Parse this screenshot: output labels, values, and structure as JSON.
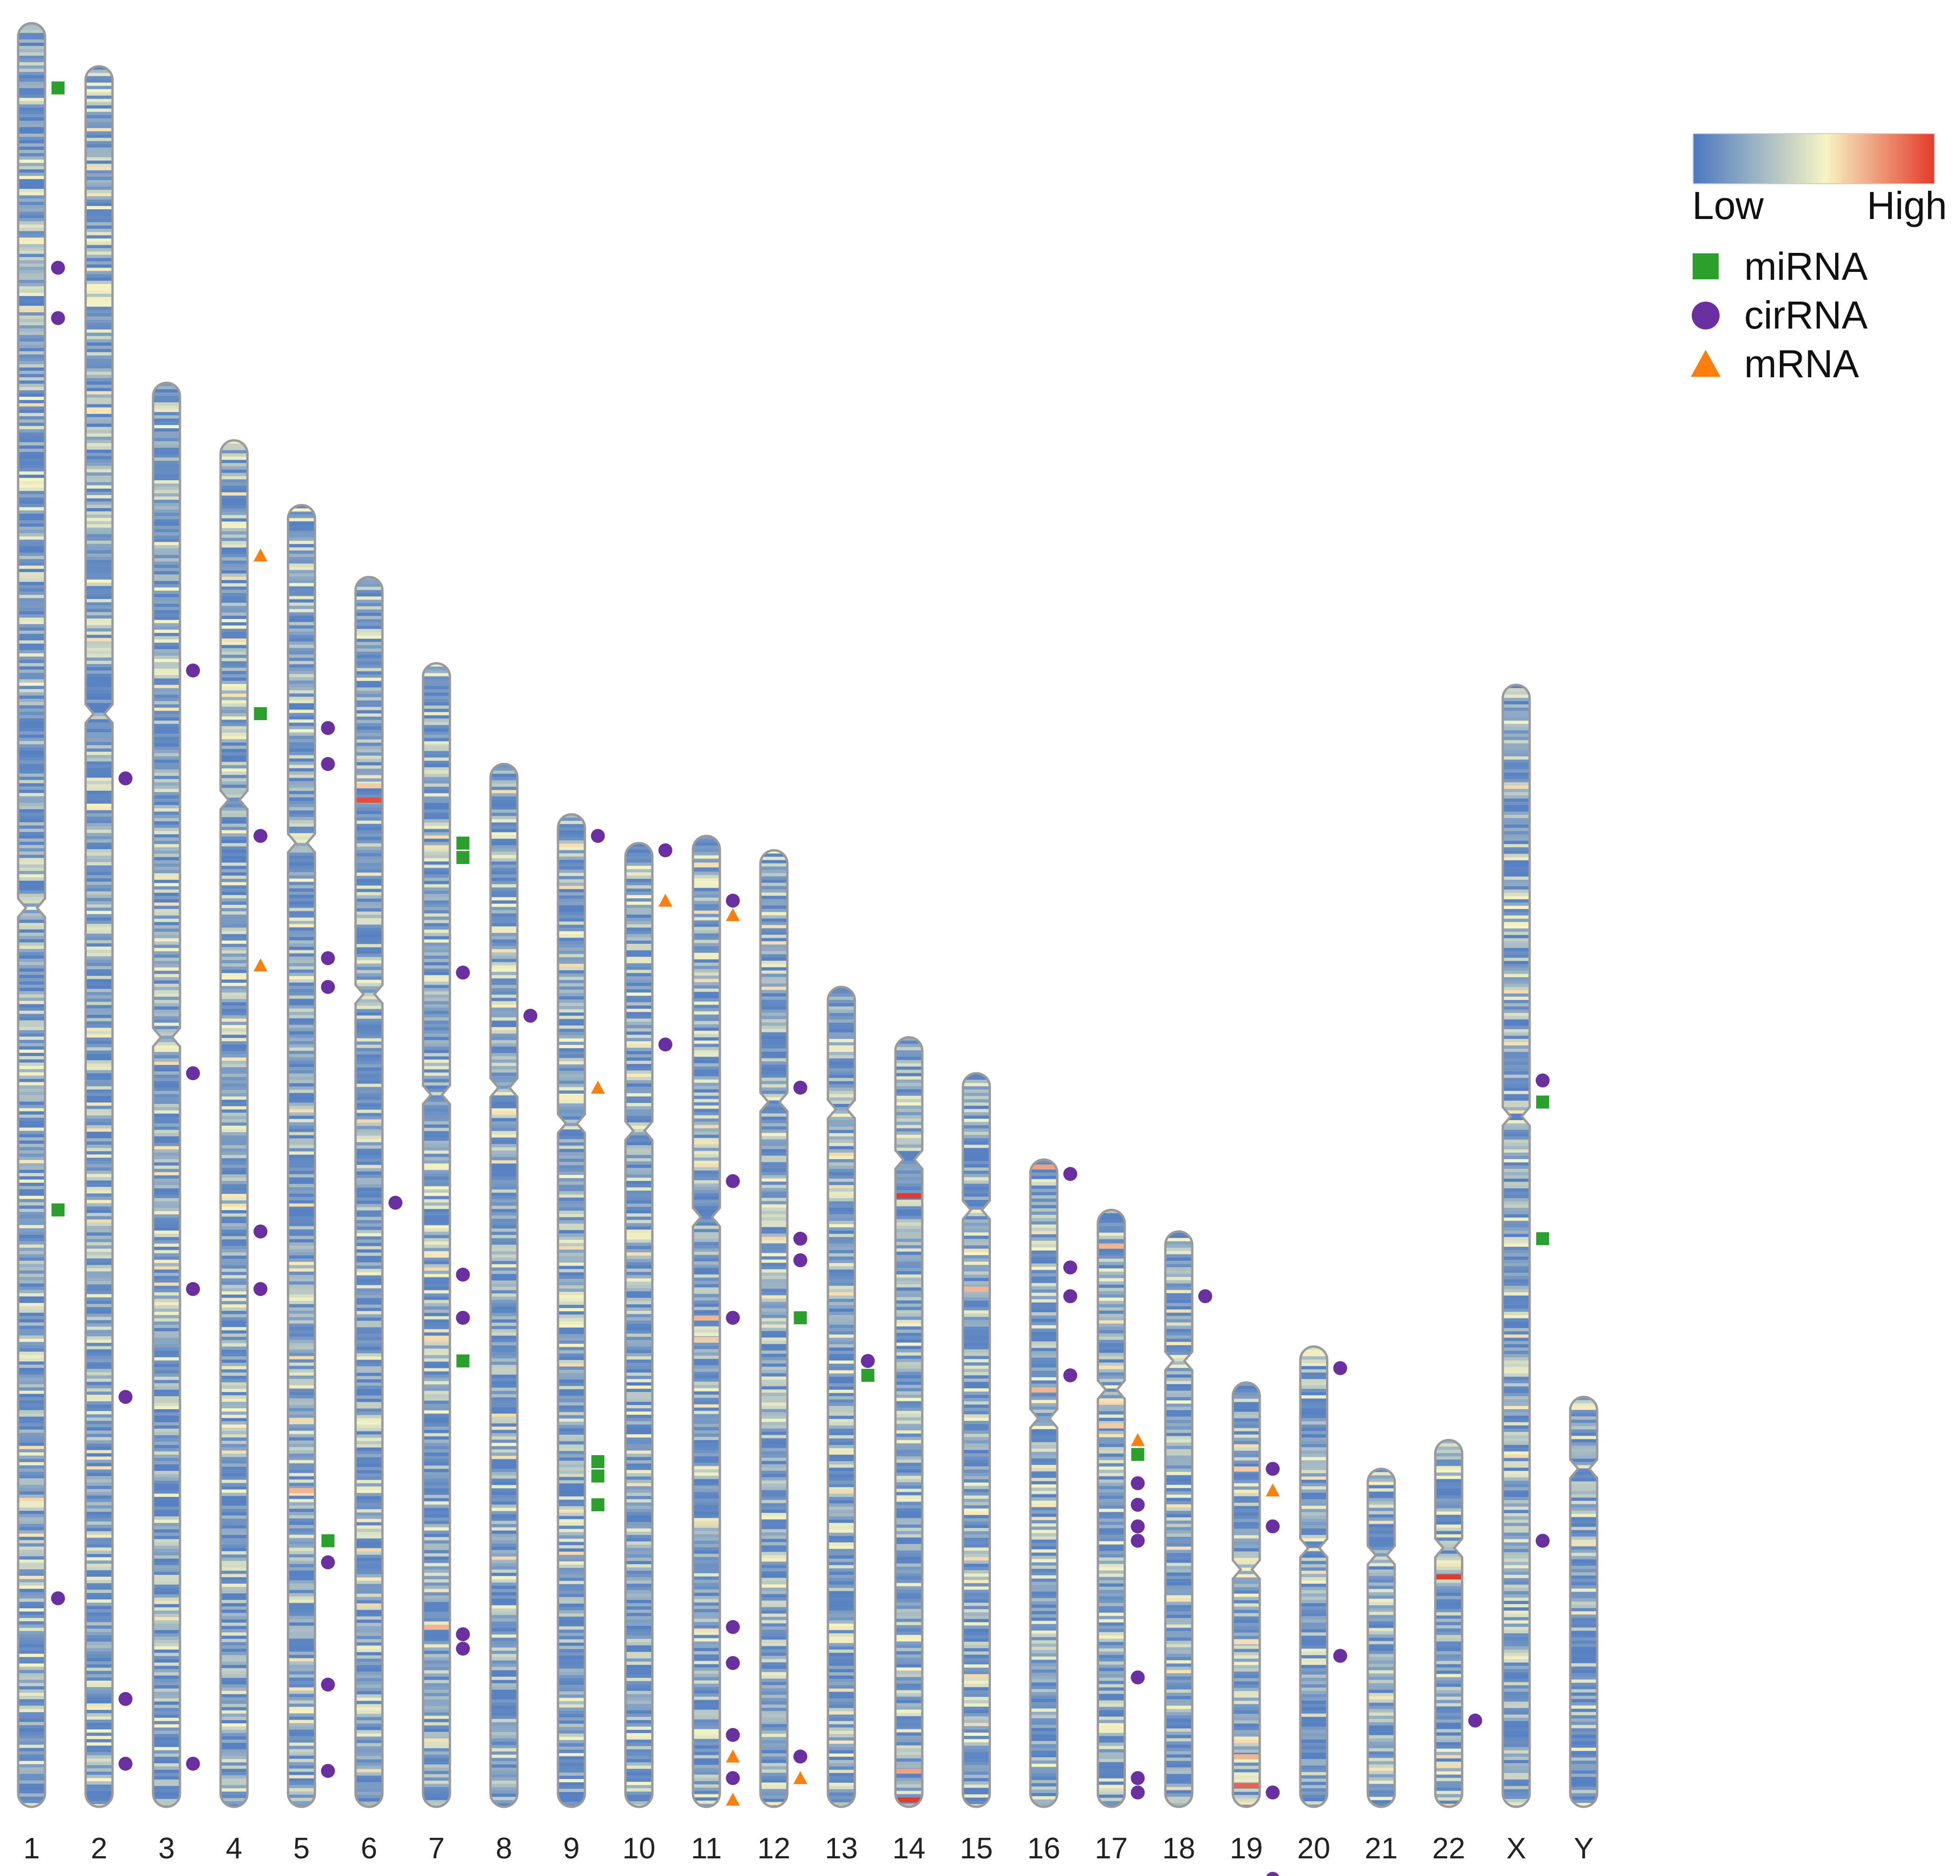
{
  "chromosomes": [
    {
      "label": "1",
      "length": 248,
      "centromere": 123
    },
    {
      "label": "2",
      "length": 242,
      "centromere": 90
    },
    {
      "label": "3",
      "length": 198,
      "centromere": 91
    },
    {
      "label": "4",
      "length": 190,
      "centromere": 50
    },
    {
      "label": "5",
      "length": 181,
      "centromere": 47
    },
    {
      "label": "6",
      "length": 171,
      "centromere": 58
    },
    {
      "label": "7",
      "length": 159,
      "centromere": 60
    },
    {
      "label": "8",
      "length": 145,
      "centromere": 45
    },
    {
      "label": "9",
      "length": 138,
      "centromere": 43
    },
    {
      "label": "10",
      "length": 134,
      "centromere": 40
    },
    {
      "label": "11",
      "length": 135,
      "centromere": 53
    },
    {
      "label": "12",
      "length": 133,
      "centromere": 35
    },
    {
      "label": "13",
      "length": 114,
      "centromere": 17
    },
    {
      "label": "14",
      "length": 107,
      "centromere": 17
    },
    {
      "label": "15",
      "length": 102,
      "centromere": 19
    },
    {
      "label": "16",
      "length": 90,
      "centromere": 36
    },
    {
      "label": "17",
      "length": 83,
      "centromere": 25
    },
    {
      "label": "18",
      "length": 80,
      "centromere": 18
    },
    {
      "label": "19",
      "length": 59,
      "centromere": 26
    },
    {
      "label": "20",
      "length": 64,
      "centromere": 28
    },
    {
      "label": "21",
      "length": 47,
      "centromere": 12
    },
    {
      "label": "22",
      "length": 51,
      "centromere": 15
    },
    {
      "label": "X",
      "length": 156,
      "centromere": 60
    },
    {
      "label": "Y",
      "length": 57,
      "centromere": 10
    }
  ],
  "legend": {
    "colorbar": {
      "low_label": "Low",
      "high_label": "High",
      "colors": [
        "#4a78c2",
        "#f6f4c4",
        "#e33b2a"
      ]
    },
    "items": [
      {
        "label": "miRNA",
        "shape": "square",
        "color": "#2ca02c"
      },
      {
        "label": "cirRNA",
        "shape": "circle",
        "color": "#6a2fa0"
      },
      {
        "label": "mRNA",
        "shape": "triangle",
        "color": "#ff7f0e"
      }
    ]
  },
  "markers": [
    {
      "chr": "1",
      "pos": 9,
      "type": "miRNA"
    },
    {
      "chr": "1",
      "pos": 34,
      "type": "cirRNA"
    },
    {
      "chr": "1",
      "pos": 41,
      "type": "cirRNA"
    },
    {
      "chr": "1",
      "pos": 165,
      "type": "miRNA"
    },
    {
      "chr": "1",
      "pos": 219,
      "type": "cirRNA"
    },
    {
      "chr": "2",
      "pos": 99,
      "type": "cirRNA"
    },
    {
      "chr": "2",
      "pos": 185,
      "type": "cirRNA"
    },
    {
      "chr": "2",
      "pos": 227,
      "type": "cirRNA"
    },
    {
      "chr": "2",
      "pos": 236,
      "type": "cirRNA"
    },
    {
      "chr": "3",
      "pos": 40,
      "type": "cirRNA"
    },
    {
      "chr": "3",
      "pos": 96,
      "type": "cirRNA"
    },
    {
      "chr": "3",
      "pos": 126,
      "type": "cirRNA"
    },
    {
      "chr": "3",
      "pos": 192,
      "type": "cirRNA"
    },
    {
      "chr": "4",
      "pos": 16,
      "type": "mRNA"
    },
    {
      "chr": "4",
      "pos": 38,
      "type": "miRNA"
    },
    {
      "chr": "4",
      "pos": 55,
      "type": "cirRNA"
    },
    {
      "chr": "4",
      "pos": 73,
      "type": "mRNA"
    },
    {
      "chr": "4",
      "pos": 110,
      "type": "cirRNA"
    },
    {
      "chr": "4",
      "pos": 118,
      "type": "cirRNA"
    },
    {
      "chr": "5",
      "pos": 31,
      "type": "cirRNA"
    },
    {
      "chr": "5",
      "pos": 36,
      "type": "cirRNA"
    },
    {
      "chr": "5",
      "pos": 63,
      "type": "cirRNA"
    },
    {
      "chr": "5",
      "pos": 67,
      "type": "cirRNA"
    },
    {
      "chr": "5",
      "pos": 144,
      "type": "miRNA"
    },
    {
      "chr": "5",
      "pos": 147,
      "type": "cirRNA"
    },
    {
      "chr": "5",
      "pos": 164,
      "type": "cirRNA"
    },
    {
      "chr": "5",
      "pos": 176,
      "type": "cirRNA"
    },
    {
      "chr": "6",
      "pos": 87,
      "type": "cirRNA"
    },
    {
      "chr": "7",
      "pos": 25,
      "type": "miRNA"
    },
    {
      "chr": "7",
      "pos": 27,
      "type": "miRNA"
    },
    {
      "chr": "7",
      "pos": 43,
      "type": "cirRNA"
    },
    {
      "chr": "7",
      "pos": 85,
      "type": "cirRNA"
    },
    {
      "chr": "7",
      "pos": 91,
      "type": "cirRNA"
    },
    {
      "chr": "7",
      "pos": 97,
      "type": "miRNA"
    },
    {
      "chr": "7",
      "pos": 135,
      "type": "cirRNA"
    },
    {
      "chr": "7",
      "pos": 137,
      "type": "cirRNA"
    },
    {
      "chr": "8",
      "pos": 35,
      "type": "cirRNA"
    },
    {
      "chr": "9",
      "pos": 3,
      "type": "cirRNA"
    },
    {
      "chr": "9",
      "pos": 38,
      "type": "mRNA"
    },
    {
      "chr": "9",
      "pos": 90,
      "type": "miRNA"
    },
    {
      "chr": "9",
      "pos": 92,
      "type": "miRNA"
    },
    {
      "chr": "9",
      "pos": 96,
      "type": "miRNA"
    },
    {
      "chr": "10",
      "pos": 1,
      "type": "cirRNA"
    },
    {
      "chr": "10",
      "pos": 8,
      "type": "mRNA"
    },
    {
      "chr": "10",
      "pos": 28,
      "type": "cirRNA"
    },
    {
      "chr": "11",
      "pos": 9,
      "type": "cirRNA"
    },
    {
      "chr": "11",
      "pos": 11,
      "type": "mRNA"
    },
    {
      "chr": "11",
      "pos": 48,
      "type": "cirRNA"
    },
    {
      "chr": "11",
      "pos": 67,
      "type": "cirRNA"
    },
    {
      "chr": "11",
      "pos": 110,
      "type": "cirRNA"
    },
    {
      "chr": "11",
      "pos": 115,
      "type": "cirRNA"
    },
    {
      "chr": "11",
      "pos": 125,
      "type": "cirRNA"
    },
    {
      "chr": "11",
      "pos": 128,
      "type": "mRNA"
    },
    {
      "chr": "11",
      "pos": 131,
      "type": "cirRNA"
    },
    {
      "chr": "11",
      "pos": 134,
      "type": "mRNA"
    },
    {
      "chr": "12",
      "pos": 33,
      "type": "cirRNA"
    },
    {
      "chr": "12",
      "pos": 54,
      "type": "cirRNA"
    },
    {
      "chr": "12",
      "pos": 57,
      "type": "cirRNA"
    },
    {
      "chr": "12",
      "pos": 65,
      "type": "miRNA"
    },
    {
      "chr": "12",
      "pos": 126,
      "type": "cirRNA"
    },
    {
      "chr": "12",
      "pos": 129,
      "type": "mRNA"
    },
    {
      "chr": "13",
      "pos": 52,
      "type": "cirRNA"
    },
    {
      "chr": "13",
      "pos": 54,
      "type": "miRNA"
    },
    {
      "chr": "16",
      "pos": 2,
      "type": "cirRNA"
    },
    {
      "chr": "16",
      "pos": 15,
      "type": "cirRNA"
    },
    {
      "chr": "16",
      "pos": 19,
      "type": "cirRNA"
    },
    {
      "chr": "16",
      "pos": 30,
      "type": "cirRNA"
    },
    {
      "chr": "17",
      "pos": 32,
      "type": "mRNA"
    },
    {
      "chr": "17",
      "pos": 34,
      "type": "miRNA"
    },
    {
      "chr": "17",
      "pos": 38,
      "type": "cirRNA"
    },
    {
      "chr": "17",
      "pos": 41,
      "type": "cirRNA"
    },
    {
      "chr": "17",
      "pos": 44,
      "type": "cirRNA"
    },
    {
      "chr": "17",
      "pos": 46,
      "type": "cirRNA"
    },
    {
      "chr": "17",
      "pos": 65,
      "type": "cirRNA"
    },
    {
      "chr": "17",
      "pos": 79,
      "type": "cirRNA"
    },
    {
      "chr": "17",
      "pos": 81,
      "type": "cirRNA"
    },
    {
      "chr": "18",
      "pos": 9,
      "type": "cirRNA"
    },
    {
      "chr": "19",
      "pos": 12,
      "type": "cirRNA"
    },
    {
      "chr": "19",
      "pos": 15,
      "type": "mRNA"
    },
    {
      "chr": "19",
      "pos": 20,
      "type": "cirRNA"
    },
    {
      "chr": "19",
      "pos": 57,
      "type": "cirRNA"
    },
    {
      "chr": "19",
      "pos": 69,
      "type": "cirRNA"
    },
    {
      "chr": "20",
      "pos": 3,
      "type": "cirRNA"
    },
    {
      "chr": "20",
      "pos": 43,
      "type": "cirRNA"
    },
    {
      "chr": "22",
      "pos": 39,
      "type": "cirRNA"
    },
    {
      "chr": "X",
      "pos": 55,
      "type": "cirRNA"
    },
    {
      "chr": "X",
      "pos": 58,
      "type": "miRNA"
    },
    {
      "chr": "X",
      "pos": 77,
      "type": "miRNA"
    },
    {
      "chr": "X",
      "pos": 119,
      "type": "cirRNA"
    }
  ],
  "hotspots": [
    {
      "chr": "6",
      "pos": 31,
      "level": 0.95
    },
    {
      "chr": "6",
      "pos": 29,
      "level": 0.65
    },
    {
      "chr": "5",
      "pos": 137,
      "level": 0.7
    },
    {
      "chr": "7",
      "pos": 134,
      "level": 0.7
    },
    {
      "chr": "11",
      "pos": 4,
      "level": 0.6
    },
    {
      "chr": "11",
      "pos": 67,
      "level": 0.7
    },
    {
      "chr": "11",
      "pos": 70,
      "level": 0.65
    },
    {
      "chr": "14",
      "pos": 22,
      "level": 1.0
    },
    {
      "chr": "14",
      "pos": 102,
      "level": 0.75
    },
    {
      "chr": "14",
      "pos": 106,
      "level": 1.0
    },
    {
      "chr": "15",
      "pos": 30,
      "level": 0.7
    },
    {
      "chr": "16",
      "pos": 1,
      "level": 0.75
    },
    {
      "chr": "16",
      "pos": 32,
      "level": 0.7
    },
    {
      "chr": "17",
      "pos": 5,
      "level": 0.7
    },
    {
      "chr": "17",
      "pos": 30,
      "level": 0.65
    },
    {
      "chr": "19",
      "pos": 12,
      "level": 0.65
    },
    {
      "chr": "19",
      "pos": 36,
      "level": 0.6
    },
    {
      "chr": "19",
      "pos": 52,
      "level": 0.7
    },
    {
      "chr": "19",
      "pos": 56,
      "level": 0.9
    },
    {
      "chr": "22",
      "pos": 19,
      "level": 1.0
    }
  ]
}
